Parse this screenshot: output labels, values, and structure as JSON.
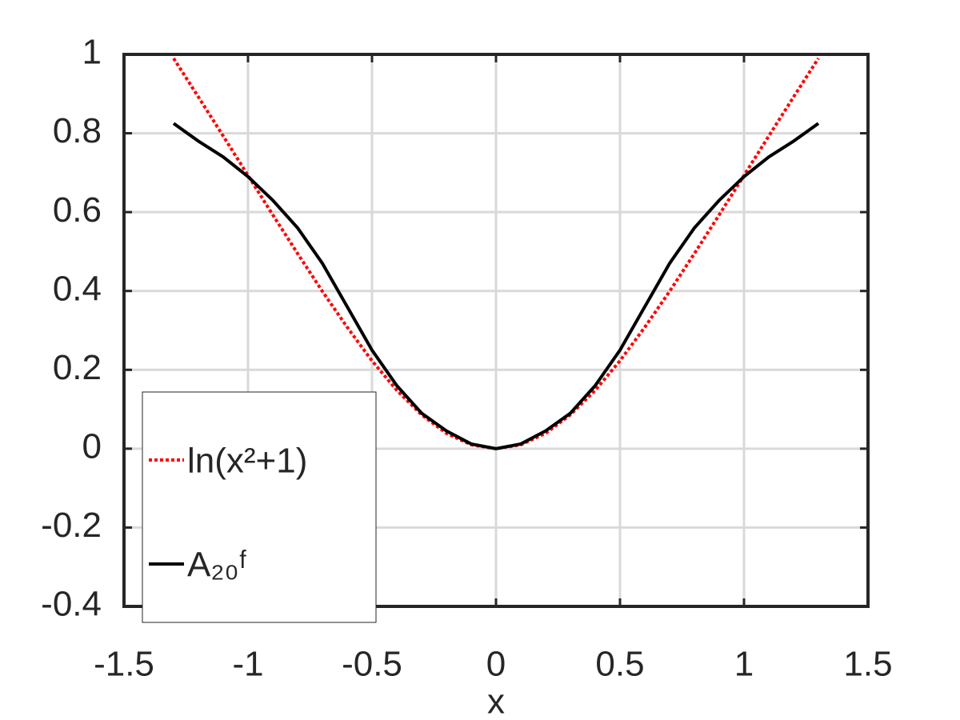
{
  "chart_data": {
    "type": "line",
    "xlabel": "x",
    "x": [
      -1.3,
      -1.2,
      -1.1,
      -1.0,
      -0.9,
      -0.8,
      -0.7,
      -0.6,
      -0.5,
      -0.4,
      -0.3,
      -0.2,
      -0.1,
      0,
      0.1,
      0.2,
      0.3,
      0.4,
      0.5,
      0.6,
      0.7,
      0.8,
      0.9,
      1.0,
      1.1,
      1.2,
      1.3
    ],
    "series": [
      {
        "name": "ln(x²+1)",
        "color": "#ff0000",
        "style": "dotted",
        "values": [
          0.99,
          0.892,
          0.793,
          0.693,
          0.593,
          0.495,
          0.399,
          0.308,
          0.223,
          0.148,
          0.086,
          0.039,
          0.01,
          0,
          0.01,
          0.039,
          0.086,
          0.148,
          0.223,
          0.308,
          0.399,
          0.495,
          0.593,
          0.693,
          0.793,
          0.892,
          0.99
        ]
      },
      {
        "name": "A₂₀ᶠ",
        "color": "#000000",
        "style": "solid",
        "values": [
          0.825,
          0.78,
          0.74,
          0.69,
          0.63,
          0.56,
          0.47,
          0.36,
          0.25,
          0.16,
          0.09,
          0.045,
          0.012,
          0,
          0.012,
          0.045,
          0.09,
          0.16,
          0.25,
          0.36,
          0.47,
          0.56,
          0.63,
          0.69,
          0.74,
          0.78,
          0.825
        ]
      }
    ],
    "xlim": [
      -1.5,
      1.5
    ],
    "xticks": [
      -1.5,
      -1,
      -0.5,
      0,
      0.5,
      1,
      1.5
    ],
    "ylim": [
      -0.4,
      1
    ],
    "yticks": [
      -0.4,
      -0.2,
      0,
      0.2,
      0.4,
      0.6,
      0.8,
      1
    ],
    "grid": true,
    "legend": "lower left"
  }
}
